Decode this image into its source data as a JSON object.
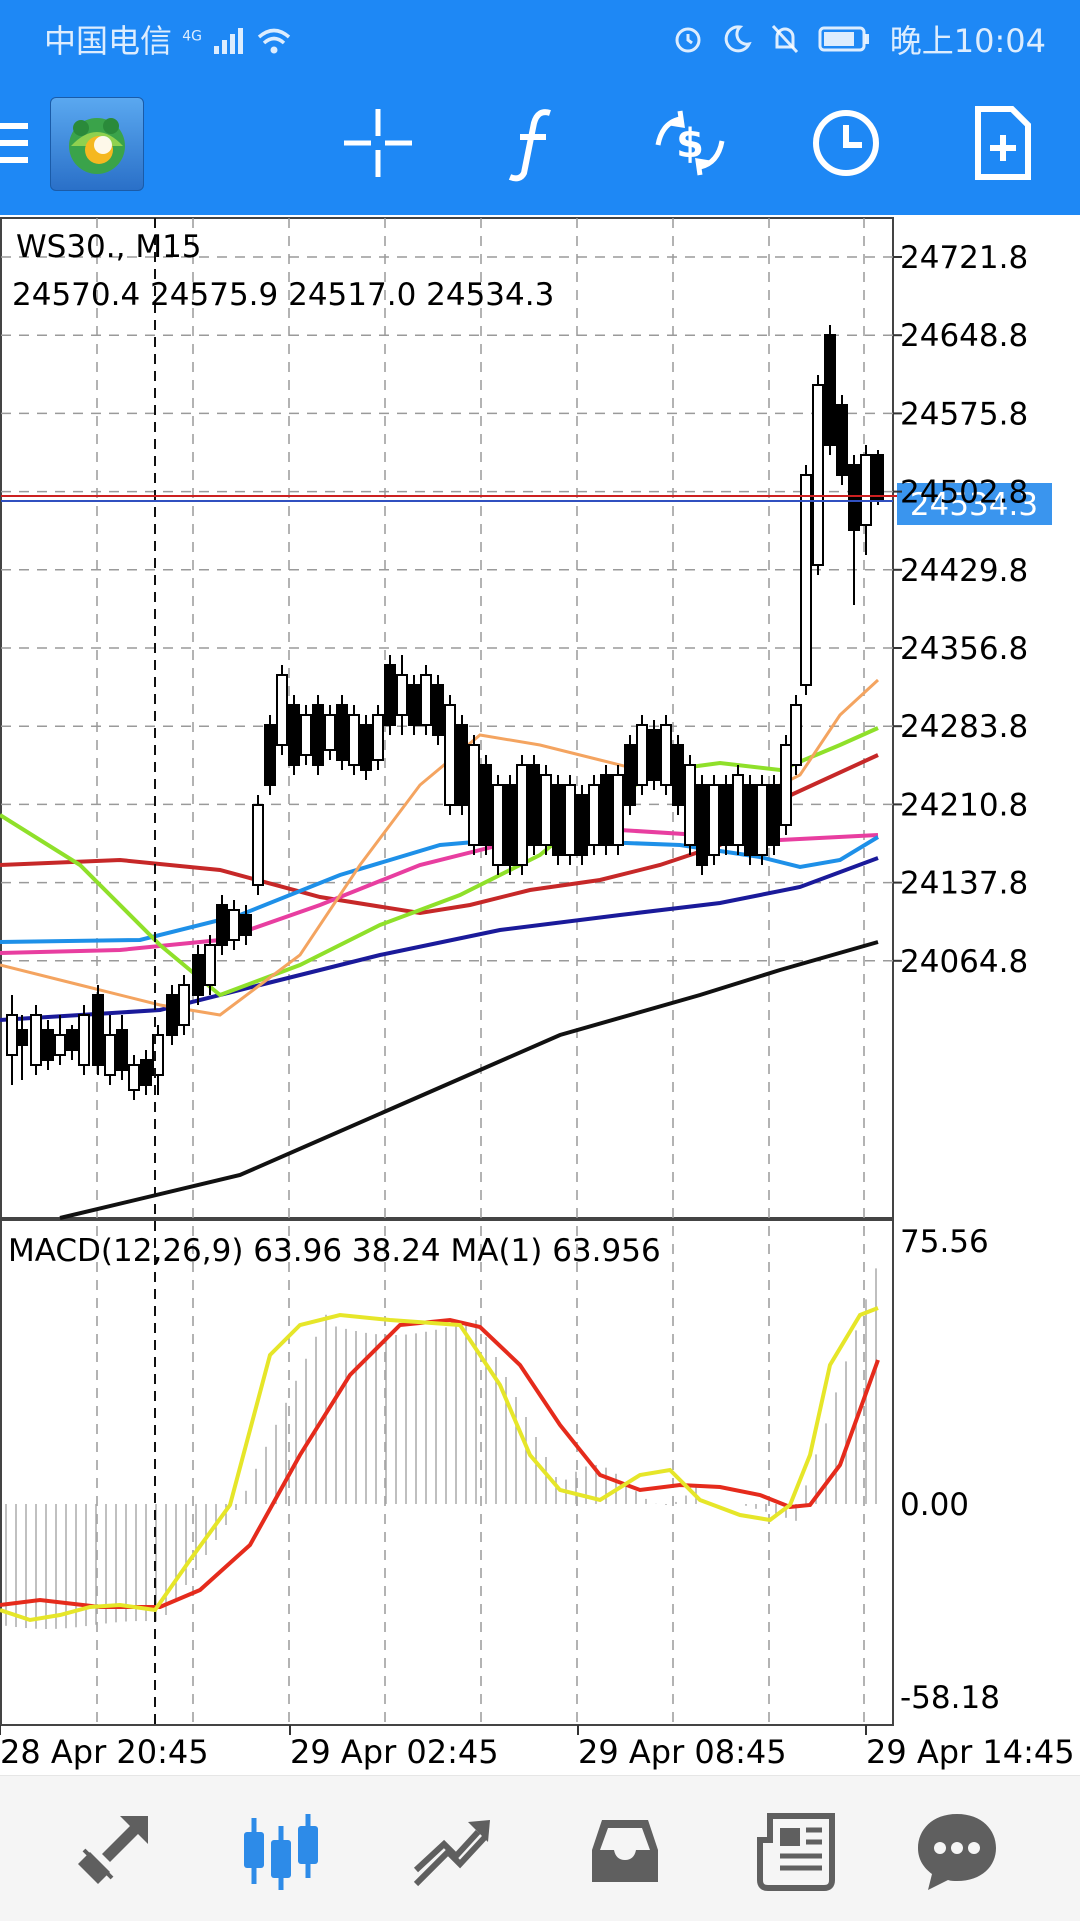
{
  "status_bar": {
    "carrier": "中国电信",
    "network": "4G",
    "time": "晚上10:04"
  },
  "toolbar": {
    "icons": [
      "menu-icon",
      "metatrader4-logo",
      "crosshair-icon",
      "indicators-f-icon",
      "trade-dollar-icon",
      "clock-period-icon",
      "new-document-icon"
    ]
  },
  "chart": {
    "symbol_label": "WS30., M15",
    "ohlc_label": "24570.4 24575.9 24517.0 24534.3",
    "current_price": "24534.3",
    "price_ticks": [
      "24721.8",
      "24648.8",
      "24575.8",
      "24502.8",
      "24429.8",
      "24356.8",
      "24283.8",
      "24210.8",
      "24137.8",
      "24064.8"
    ],
    "macd_label": "MACD(12,26,9) 63.96 38.24 MA(1) 63.956",
    "macd_ticks": [
      "75.56",
      "0.00",
      "-58.18"
    ],
    "time_ticks": [
      "28 Apr 20:45",
      "29 Apr 02:45",
      "29 Apr 08:45",
      "29 Apr 14:45"
    ],
    "colors": {
      "bid_line": "#cc2020",
      "ask_line": "#3050c0",
      "price_tag_bg": "#3a95ee",
      "macd_signal": "#e52b1c",
      "macd_main": "#e6e629"
    }
  },
  "bottom_nav": {
    "items": [
      "quotes-icon",
      "chart-icon",
      "trade-icon",
      "history-icon",
      "news-icon",
      "chat-icon"
    ],
    "active": "chart-icon"
  }
}
